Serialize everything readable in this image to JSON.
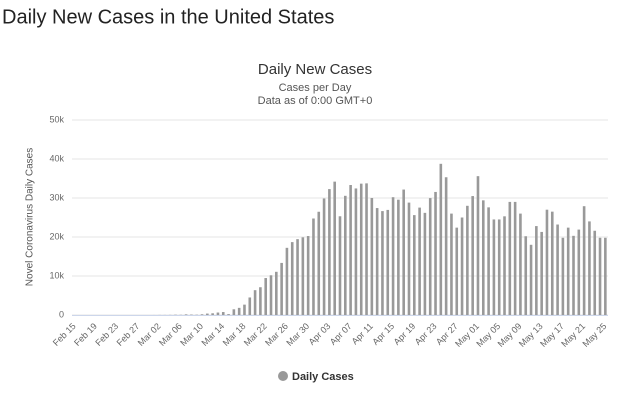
{
  "heading": "Daily New Cases in the United States",
  "chart_data": {
    "type": "bar",
    "title": "Daily New Cases",
    "subtitle": [
      "Cases per Day",
      "Data as of 0:00 GMT+0"
    ],
    "y_label": "Novel Coronavirus Daily Cases",
    "categories": [
      "Feb 15",
      null,
      null,
      null,
      "Feb 19",
      null,
      null,
      null,
      "Feb 23",
      null,
      null,
      null,
      "Feb 27",
      null,
      null,
      null,
      "Mar 02",
      null,
      null,
      null,
      "Mar 06",
      null,
      null,
      null,
      "Mar 10",
      null,
      null,
      null,
      "Mar 14",
      null,
      null,
      null,
      "Mar 18",
      null,
      null,
      null,
      "Mar 22",
      null,
      null,
      null,
      "Mar 26",
      null,
      null,
      null,
      "Mar 30",
      null,
      null,
      null,
      "Apr 03",
      null,
      null,
      null,
      "Apr 07",
      null,
      null,
      null,
      "Apr 11",
      null,
      null,
      null,
      "Apr 15",
      null,
      null,
      null,
      "Apr 19",
      null,
      null,
      null,
      "Apr 23",
      null,
      null,
      null,
      "Apr 27",
      null,
      null,
      null,
      "May 01",
      null,
      null,
      null,
      "May 05",
      null,
      null,
      null,
      "May 09",
      null,
      null,
      null,
      "May 13",
      null,
      null,
      null,
      "May 17",
      null,
      null,
      null,
      "May 21",
      null,
      null,
      null,
      "May 25"
    ],
    "series": [
      {
        "name": "Daily Cases",
        "color": "#999999",
        "values": [
          0,
          0,
          0,
          0,
          0,
          0,
          0,
          0,
          0,
          0,
          0,
          0,
          0,
          0,
          0,
          7,
          23,
          19,
          33,
          77,
          53,
          166,
          116,
          75,
          188,
          365,
          439,
          633,
          759,
          234,
          1467,
          1833,
          2657,
          4494,
          6367,
          7123,
          9478,
          10189,
          11075,
          13355,
          17224,
          18691,
          19452,
          19913,
          20250,
          24742,
          26473,
          29874,
          32284,
          34196,
          25316,
          30561,
          33331,
          32449,
          33680,
          33752,
          30003,
          27421,
          26641,
          26945,
          30206,
          29567,
          32165,
          28819,
          25612,
          27539,
          26193,
          29973,
          31552,
          38764,
          35322,
          26000,
          22400,
          25000,
          28000,
          30500,
          35600,
          29400,
          27600,
          24500,
          24500,
          25300,
          29000,
          29000,
          26000,
          20200,
          18000,
          22800,
          21300,
          27000,
          26500,
          23200,
          19800,
          22400,
          20300,
          21900,
          27900,
          24000,
          21600,
          19800,
          19800
        ]
      }
    ],
    "ylim": [
      0,
      50000
    ],
    "yticks": [
      0,
      {
        "value": 10000,
        "label": "10k"
      },
      {
        "value": 20000,
        "label": "20k"
      },
      {
        "value": 30000,
        "label": "30k"
      },
      {
        "value": 40000,
        "label": "40k"
      },
      {
        "value": 50000,
        "label": "50k"
      }
    ],
    "grid": true,
    "legend": "bottom"
  }
}
